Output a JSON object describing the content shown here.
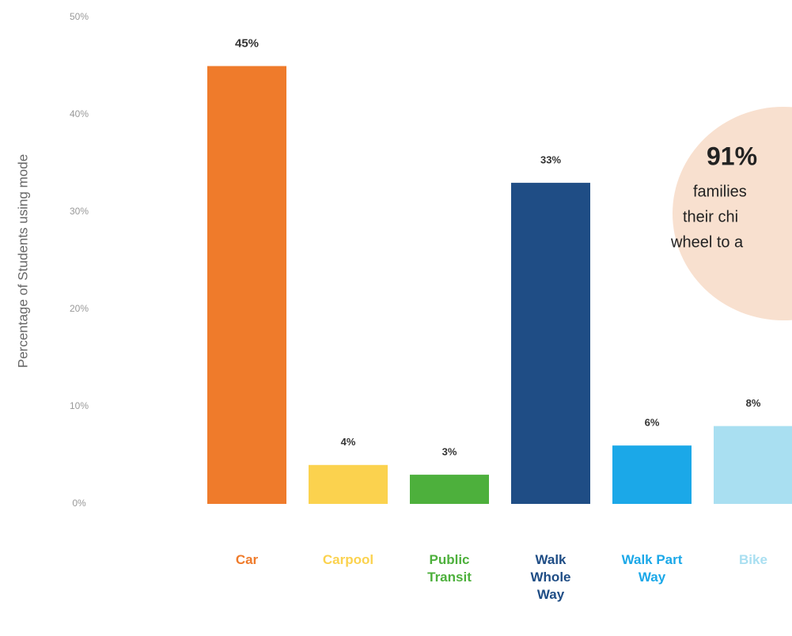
{
  "chart_data": {
    "type": "bar",
    "ylabel": "Percentage of Students using mode",
    "categories": [
      "Car",
      "Carpool",
      "Public Transit",
      "Walk Whole Way",
      "Walk Part Way",
      "Bike"
    ],
    "values": [
      45,
      4,
      3,
      33,
      6,
      8
    ],
    "value_labels": [
      "45%",
      "4%",
      "3%",
      "33%",
      "6%",
      "8%"
    ],
    "colors": [
      "#ef7b2b",
      "#fbd24e",
      "#4db03c",
      "#1f4d85",
      "#1ba8e8",
      "#a9dff1"
    ],
    "ylim": [
      0,
      50
    ],
    "yticks": [
      {
        "value": 0,
        "label": "0%"
      },
      {
        "value": 10,
        "label": "10%"
      },
      {
        "value": 20,
        "label": "20%"
      },
      {
        "value": 30,
        "label": "30%"
      },
      {
        "value": 40,
        "label": "40%"
      },
      {
        "value": 50,
        "label": "50%"
      }
    ],
    "annotations": [
      "91%",
      "families",
      "their chi",
      "wheel to a"
    ]
  }
}
